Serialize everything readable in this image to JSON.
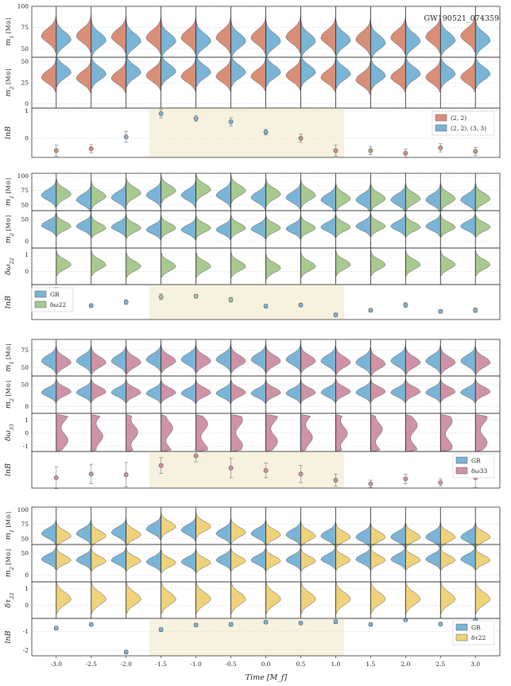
{
  "chart_data": {
    "type": "violin-grid",
    "title": "GW190521_074359",
    "xlabel": "Time [M_f]",
    "x_ticks": [
      "-3.0",
      "-2.5",
      "-2.0",
      "-1.5",
      "-1.0",
      "-0.5",
      "0.0",
      "0.5",
      "1.0",
      "1.5",
      "2.0",
      "2.5",
      "3.0"
    ],
    "x": [
      -3.0,
      -2.5,
      -2.0,
      -1.5,
      -1.0,
      -0.5,
      0.0,
      0.5,
      1.0,
      1.5,
      2.0,
      2.5,
      3.0
    ],
    "highlight_range": [
      -1.67,
      1.12
    ],
    "colors": {
      "gr": "#7ab4d6",
      "c22": "#d98e77",
      "dw22": "#a8c98f",
      "dw33": "#cf93a6",
      "dt22": "#efd27a",
      "highlight": "#f7f2e0",
      "error": "#888888"
    },
    "groups": [
      {
        "name": "Reference vs (2,2),(3,3)",
        "legend": [
          "(2, 2)",
          "(2, 2), (3, 3)"
        ],
        "legend_colors": [
          "c22",
          "gr"
        ],
        "rows": [
          {
            "label": "m1 [M⊙]",
            "yticks": [
              "50",
              "75",
              "100"
            ],
            "ytick_values": [
              50,
              75,
              100
            ],
            "ylim": [
              40,
              100
            ],
            "left_color": "c22",
            "right_color": "gr",
            "left_center": [
              68,
              68,
              67,
              66,
              66,
              66,
              66,
              67,
              66,
              64,
              66,
              67,
              68
            ],
            "right_center": [
              64,
              63,
              62,
              62,
              62,
              62,
              62,
              62,
              63,
              60,
              62,
              63,
              63
            ],
            "spread": 10
          },
          {
            "label": "m2 [M⊙]",
            "yticks": [
              "0",
              "25",
              "50"
            ],
            "ytick_values": [
              0,
              25,
              50
            ],
            "ylim": [
              -5,
              55
            ],
            "left_color": "c22",
            "right_color": "gr",
            "left_center": [
              34,
              33,
              33,
              36,
              35,
              35,
              35,
              36,
              34,
              31,
              34,
              34,
              34
            ],
            "right_center": [
              40,
              38,
              40,
              41,
              40,
              40,
              40,
              40,
              38,
              36,
              38,
              38,
              38
            ],
            "spread": 9
          }
        ],
        "lnB": {
          "label": "lnB",
          "yticks": [
            "0",
            "1"
          ],
          "ytick_values": [
            0,
            1
          ],
          "ylim": [
            -0.7,
            1.1
          ],
          "values": [
            -0.45,
            -0.38,
            0.05,
            0.9,
            0.72,
            0.6,
            0.22,
            0.0,
            -0.45,
            -0.45,
            -0.55,
            -0.35,
            -0.48
          ],
          "errors": [
            0.2,
            0.15,
            0.2,
            0.15,
            0.1,
            0.15,
            0.1,
            0.15,
            0.2,
            0.15,
            0.15,
            0.15,
            0.15
          ],
          "point_colors": [
            "c22",
            "c22",
            "gr",
            "gr",
            "gr",
            "gr",
            "gr",
            "c22",
            "c22",
            "c22",
            "c22",
            "c22",
            "c22"
          ]
        }
      },
      {
        "name": "GR vs delta omega 22",
        "legend": [
          "GR",
          "δω22"
        ],
        "legend_colors": [
          "gr",
          "dw22"
        ],
        "rows": [
          {
            "label": "m1 [M⊙]",
            "yticks": [
              "50",
              "75",
              "100"
            ],
            "ytick_values": [
              50,
              75,
              100
            ],
            "ylim": [
              40,
              105
            ],
            "left_color": "gr",
            "right_color": "dw22",
            "left_center": [
              70,
              62,
              66,
              70,
              70,
              70,
              66,
              66,
              62,
              62,
              62,
              62,
              62
            ],
            "right_center": [
              72,
              68,
              74,
              78,
              80,
              78,
              72,
              70,
              64,
              64,
              64,
              64,
              64
            ],
            "spread": 11
          },
          {
            "label": "m2 [M⊙]",
            "yticks": [
              "0",
              "50"
            ],
            "ytick_values": [
              0,
              50
            ],
            "ylim": [
              -15,
              70
            ],
            "left_color": "gr",
            "right_color": "dw22",
            "left_center": [
              40,
              38,
              36,
              30,
              30,
              30,
              32,
              32,
              36,
              38,
              38,
              38,
              38
            ],
            "right_center": [
              38,
              34,
              34,
              34,
              34,
              34,
              34,
              34,
              36,
              38,
              36,
              36,
              36
            ],
            "spread": 12
          },
          {
            "label": "δω22",
            "yticks": [
              "0",
              "1"
            ],
            "ytick_values": [
              0,
              1
            ],
            "ylim": [
              -0.8,
              1.4
            ],
            "left_color": null,
            "right_color": "dw22",
            "left_center": [
              0.2,
              0.2,
              0.2,
              0.2,
              0.2,
              0.2,
              0.2,
              0.2,
              0.2,
              0.2,
              0.2,
              0.2,
              0.2
            ],
            "right_center": [
              0.5,
              0.5,
              0.4,
              0.4,
              0.4,
              0.4,
              0.3,
              0.4,
              0.5,
              0.5,
              0.5,
              0.5,
              0.5
            ],
            "spread": 0.35
          }
        ],
        "lnB": {
          "label": "lnB",
          "yticks": [],
          "ytick_values": [],
          "ylim": [
            -0.3,
            0.3
          ],
          "values": [
            0.2,
            -0.06,
            0.0,
            0.09,
            0.1,
            0.04,
            -0.07,
            -0.05,
            -0.22,
            -0.14,
            -0.05,
            -0.16,
            -0.14
          ],
          "errors": [
            0.05,
            0.03,
            0.04,
            0.05,
            0.03,
            0.04,
            0.03,
            0.03,
            0.03,
            0.03,
            0.04,
            0.03,
            0.04
          ],
          "point_colors": [
            "dw22",
            "gr",
            "gr",
            "dw22",
            "dw22",
            "dw22",
            "gr",
            "gr",
            "gr",
            "gr",
            "gr",
            "gr",
            "gr"
          ]
        }
      },
      {
        "name": "GR vs delta omega 33",
        "legend": [
          "GR",
          "δω33"
        ],
        "legend_colors": [
          "gr",
          "dw33"
        ],
        "rows": [
          {
            "label": "m1 [M⊙]",
            "yticks": [
              "50",
              "75"
            ],
            "ytick_values": [
              50,
              75
            ],
            "ylim": [
              38,
              90
            ],
            "left_color": "gr",
            "right_color": "dw33",
            "left_center": [
              62,
              62,
              62,
              64,
              64,
              64,
              64,
              64,
              62,
              60,
              62,
              62,
              62
            ],
            "right_center": [
              60,
              60,
              60,
              62,
              62,
              62,
              62,
              62,
              60,
              58,
              60,
              60,
              60
            ],
            "spread": 9
          },
          {
            "label": "m2 [M⊙]",
            "yticks": [
              "0",
              "50"
            ],
            "ytick_values": [
              0,
              50
            ],
            "ylim": [
              -15,
              70
            ],
            "left_color": "gr",
            "right_color": "dw33",
            "left_center": [
              36,
              36,
              36,
              34,
              34,
              34,
              34,
              34,
              36,
              36,
              36,
              36,
              36
            ],
            "right_center": [
              38,
              38,
              36,
              36,
              36,
              36,
              36,
              36,
              38,
              38,
              38,
              38,
              38
            ],
            "spread": 12
          },
          {
            "label": "δω33",
            "yticks": [
              "-1",
              "0",
              "1"
            ],
            "ytick_values": [
              -1,
              0,
              1
            ],
            "ylim": [
              -1.4,
              1.5
            ],
            "left_color": null,
            "right_color": "dw33",
            "left_center": [
              0.1,
              0.1,
              0.1,
              0.1,
              0.1,
              0.1,
              0.1,
              0.1,
              0.1,
              0.1,
              0.1,
              0.1,
              0.1
            ],
            "right_center": [
              0.0,
              0.0,
              0.0,
              0.0,
              0.0,
              0.0,
              0.0,
              0.0,
              0.0,
              0.0,
              0.0,
              0.0,
              0.0
            ],
            "spread": 1.15,
            "flat": true
          }
        ],
        "lnB": {
          "label": "lnB",
          "yticks": [],
          "ytick_values": [],
          "ylim": [
            -0.05,
            0.55
          ],
          "values": [
            0.12,
            0.18,
            0.17,
            0.32,
            0.48,
            0.28,
            0.24,
            0.18,
            0.08,
            0.02,
            0.1,
            0.04,
            0.12
          ],
          "errors": [
            0.18,
            0.16,
            0.2,
            0.13,
            0.1,
            0.16,
            0.12,
            0.14,
            0.1,
            0.06,
            0.08,
            0.06,
            0.16
          ],
          "point_colors": [
            "dw33",
            "dw33",
            "dw33",
            "dw33",
            "dw33",
            "dw33",
            "dw33",
            "dw33",
            "dw33",
            "dw33",
            "dw33",
            "dw33",
            "dw33"
          ]
        }
      },
      {
        "name": "GR vs delta tau 22",
        "legend": [
          "GR",
          "δτ22"
        ],
        "legend_colors": [
          "gr",
          "dt22"
        ],
        "rows": [
          {
            "label": "m1 [M⊙]",
            "yticks": [
              "50",
              "75",
              "100"
            ],
            "ytick_values": [
              50,
              75,
              100
            ],
            "ylim": [
              40,
              105
            ],
            "left_color": "gr",
            "right_color": "dt22",
            "left_center": [
              62,
              62,
              64,
              70,
              68,
              62,
              62,
              60,
              58,
              56,
              56,
              56,
              56
            ],
            "right_center": [
              58,
              58,
              60,
              74,
              74,
              64,
              60,
              58,
              56,
              56,
              56,
              56,
              56
            ],
            "spread": 10
          },
          {
            "label": "m2 [M⊙]",
            "yticks": [
              "0",
              "50"
            ],
            "ytick_values": [
              0,
              50
            ],
            "ylim": [
              -15,
              70
            ],
            "left_color": "gr",
            "right_color": "dt22",
            "left_center": [
              40,
              38,
              38,
              34,
              34,
              38,
              38,
              38,
              40,
              40,
              40,
              40,
              40
            ],
            "right_center": [
              38,
              36,
              36,
              32,
              32,
              36,
              36,
              36,
              38,
              38,
              38,
              38,
              38
            ],
            "spread": 12
          },
          {
            "label": "δτ22",
            "yticks": [
              "0",
              "1"
            ],
            "ytick_values": [
              0,
              1
            ],
            "ylim": [
              -0.8,
              1.4
            ],
            "left_color": null,
            "right_color": "dt22",
            "left_center": [
              0.3,
              0.3,
              0.3,
              0.3,
              0.3,
              0.3,
              0.3,
              0.3,
              0.3,
              0.3,
              0.3,
              0.3,
              0.3
            ],
            "right_center": [
              0.5,
              0.5,
              0.5,
              0.5,
              0.5,
              0.5,
              0.5,
              0.5,
              0.5,
              0.5,
              0.5,
              0.5,
              0.5
            ],
            "spread": 0.45
          }
        ],
        "lnB": {
          "label": "lnB",
          "yticks": [
            "-2",
            "-1"
          ],
          "ytick_values": [
            -2,
            -1
          ],
          "ylim": [
            -2.3,
            -0.3
          ],
          "values": [
            -0.82,
            -0.62,
            -2.1,
            -0.9,
            -0.65,
            -0.62,
            -0.5,
            -0.55,
            -0.48,
            -0.62,
            -0.38,
            -0.6,
            -0.4
          ],
          "errors": [
            0.1,
            0.08,
            0.1,
            0.1,
            0.08,
            0.1,
            0.08,
            0.08,
            0.1,
            0.08,
            0.08,
            0.08,
            0.08
          ],
          "point_colors": [
            "gr",
            "gr",
            "gr",
            "gr",
            "gr",
            "gr",
            "gr",
            "gr",
            "gr",
            "gr",
            "gr",
            "gr",
            "gr"
          ]
        }
      }
    ]
  },
  "labels": {
    "m1": "m",
    "m1_sub": "1",
    "m2": "m",
    "m2_sub": "2",
    "unit": "[M⊙]",
    "lnB": "lnB",
    "dw22": "δω",
    "dw22_sub": "22",
    "dw33": "δω",
    "dw33_sub": "33",
    "dt22": "δτ",
    "dt22_sub": "22"
  }
}
